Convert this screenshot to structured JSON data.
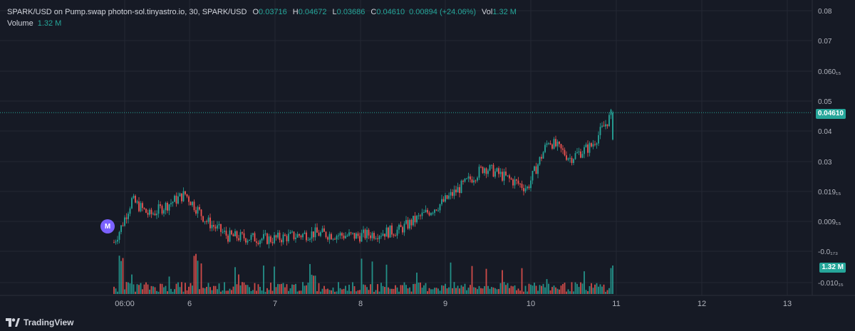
{
  "legend": {
    "symbol": "SPARK/USD on Pump.swap photon-sol.tinyastro.io, 30, SPARK/USD",
    "open_label": "O",
    "open": "0.03716",
    "high_label": "H",
    "high": "0.04672",
    "low_label": "L",
    "low": "0.03686",
    "close_label": "C",
    "close": "0.04610",
    "change": "0.00894 (+24.06%)",
    "vol_label": "Vol",
    "vol": "1.32 M",
    "volume_title": "Volume",
    "volume_value": "1.32 M"
  },
  "price_tag": "0.04610",
  "volume_tag": "1.32 M",
  "marker_label": "M",
  "brand": "TradingView",
  "colors": {
    "up": "#26a69a",
    "down": "#ef5350",
    "background": "#161a25",
    "grid": "#242833",
    "text": "#b2b5be"
  },
  "chart_data": {
    "type": "candlestick",
    "price_axis_labels": [
      "0.08",
      "0.07",
      "0.060₁₅",
      "0.05",
      "0.04",
      "0.03",
      "0.019₁₅",
      "0.009₁₅",
      "-0.0₁₇₃",
      "-0.010₁₅"
    ],
    "time_axis_labels": [
      "06:00",
      "6",
      "7",
      "8",
      "9",
      "10",
      "11",
      "12",
      "13"
    ],
    "last_price": 0.0461,
    "last_volume": "1.32 M",
    "price_trend": [
      {
        "date": "5 ~04:00",
        "price": 0.003
      },
      {
        "date": "5 ~06:00",
        "price": 0.008
      },
      {
        "date": "5 ~09:00",
        "price": 0.017
      },
      {
        "date": "5 ~14:00",
        "price": 0.012
      },
      {
        "date": "6 ~00:00",
        "price": 0.019
      },
      {
        "date": "6 ~06:00",
        "price": 0.01
      },
      {
        "date": "6 ~12:00",
        "price": 0.005
      },
      {
        "date": "7 ~00:00",
        "price": 0.004
      },
      {
        "date": "7 ~12:00",
        "price": 0.006
      },
      {
        "date": "8 ~00:00",
        "price": 0.005
      },
      {
        "date": "8 ~12:00",
        "price": 0.007
      },
      {
        "date": "9 ~00:00",
        "price": 0.016
      },
      {
        "date": "9 ~12:00",
        "price": 0.028
      },
      {
        "date": "10 ~00:00",
        "price": 0.021
      },
      {
        "date": "10 ~06:00",
        "price": 0.037
      },
      {
        "date": "10 ~12:00",
        "price": 0.031
      },
      {
        "date": "10 ~18:00",
        "price": 0.035
      },
      {
        "date": "11 ~00:00",
        "price": 0.0461
      }
    ],
    "volume_peaks": [
      {
        "date": "5 ~06:00",
        "level": "high"
      },
      {
        "date": "6 ~03:00",
        "level": "high"
      },
      {
        "date": "7 ~12:00",
        "level": "medium"
      },
      {
        "date": "11 ~00:00",
        "level": "medium"
      }
    ]
  }
}
